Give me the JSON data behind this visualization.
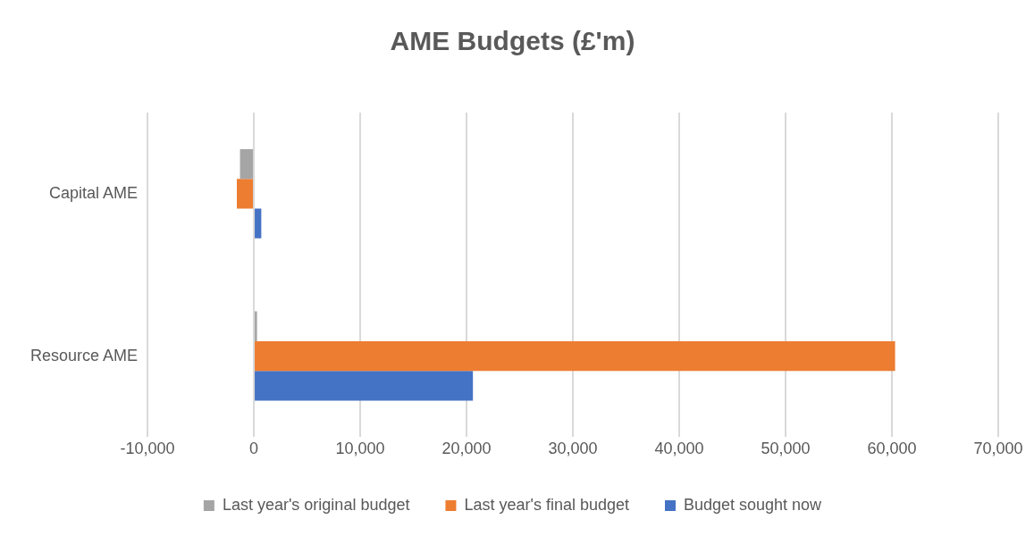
{
  "chart_data": {
    "type": "bar",
    "orientation": "horizontal",
    "title": "AME Budgets (£'m)",
    "categories": [
      "Capital AME",
      "Resource AME"
    ],
    "series": [
      {
        "name": "Last year's original budget",
        "color": "#a5a5a5",
        "values": [
          -1300,
          300
        ]
      },
      {
        "name": "Last year's final budget",
        "color": "#ed7d31",
        "values": [
          -1600,
          60300
        ]
      },
      {
        "name": "Budget sought now",
        "color": "#4472c4",
        "values": [
          700,
          20600
        ]
      }
    ],
    "xlim": [
      -10000,
      70000
    ],
    "xticks": [
      {
        "value": -10000,
        "label": "-10,000"
      },
      0,
      {
        "value": 10000,
        "label": "10,000"
      },
      {
        "value": 20000,
        "label": "20,000"
      },
      {
        "value": 30000,
        "label": "30,000"
      },
      {
        "value": 40000,
        "label": "40,000"
      },
      {
        "value": 50000,
        "label": "50,000"
      },
      {
        "value": 60000,
        "label": "60,000"
      },
      {
        "value": 70000,
        "label": "70,000"
      }
    ],
    "grid": "x",
    "legend": "bottom"
  }
}
